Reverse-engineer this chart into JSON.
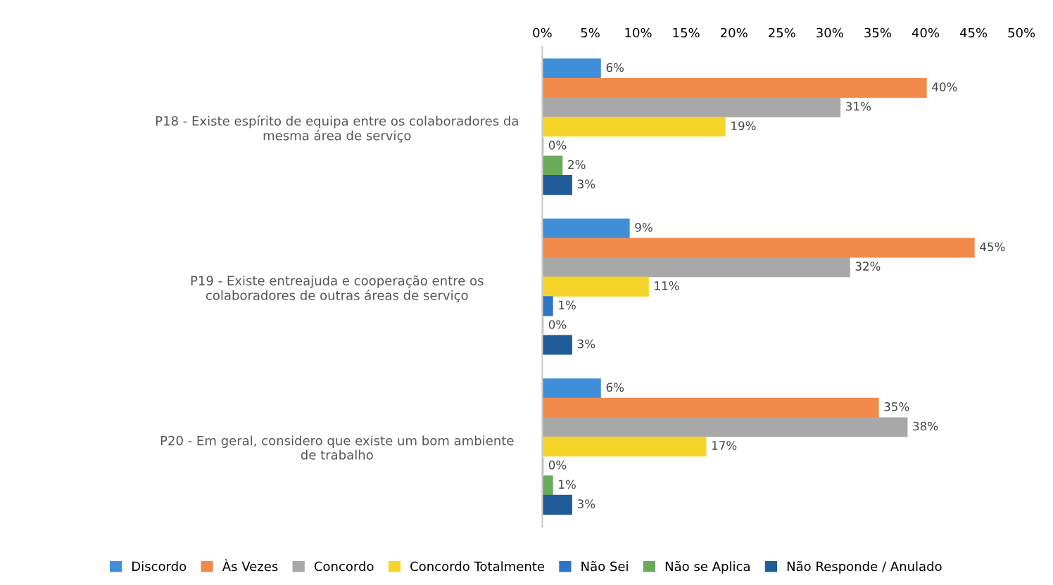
{
  "chart_data": {
    "type": "bar",
    "orientation": "horizontal",
    "categories": [
      "P18 - Existe espírito de equipa entre os colaboradores da\nmesma área de serviço",
      "P19 - Existe entreajuda e cooperação entre os\ncolaboradores de outras áreas de serviço",
      "P20 - Em geral, considero que existe um bom ambiente\nde trabalho"
    ],
    "series": [
      {
        "name": "Discordo",
        "color": "#3f8fd8",
        "values": [
          6,
          9,
          6
        ],
        "value_labels": [
          "6%",
          "9%",
          "6%"
        ]
      },
      {
        "name": "Às Vezes",
        "color": "#f28a4c",
        "values": [
          40,
          45,
          35
        ],
        "value_labels": [
          "40%",
          "45%",
          "35%"
        ]
      },
      {
        "name": "Concordo",
        "color": "#a8a8a8",
        "values": [
          31,
          32,
          38
        ],
        "value_labels": [
          "31%",
          "32%",
          "38%"
        ]
      },
      {
        "name": "Concordo Totalmente",
        "color": "#f5d52a",
        "values": [
          19,
          11,
          17
        ],
        "value_labels": [
          "19%",
          "11%",
          "17%"
        ]
      },
      {
        "name": "Não Sei",
        "color": "#2e75c6",
        "values": [
          0,
          1,
          0
        ],
        "value_labels": [
          "0%",
          "1%",
          "0%"
        ]
      },
      {
        "name": "Não se Aplica",
        "color": "#6aaa5a",
        "values": [
          2,
          0,
          1
        ],
        "value_labels": [
          "2%",
          "0%",
          "1%"
        ]
      },
      {
        "name": "Não Responde / Anulado",
        "color": "#1f5c99",
        "values": [
          3,
          3,
          3
        ],
        "value_labels": [
          "3%",
          "3%",
          "3%"
        ]
      }
    ],
    "xlim": [
      0,
      50
    ],
    "xticks": [
      {
        "value": 0,
        "label": "0%"
      },
      {
        "value": 5,
        "label": "5%"
      },
      {
        "value": 10,
        "label": "10%"
      },
      {
        "value": 15,
        "label": "15%"
      },
      {
        "value": 20,
        "label": "20%"
      },
      {
        "value": 25,
        "label": "25%"
      },
      {
        "value": 30,
        "label": "30%"
      },
      {
        "value": 35,
        "label": "35%"
      },
      {
        "value": 40,
        "label": "40%"
      },
      {
        "value": 45,
        "label": "45%"
      },
      {
        "value": 50,
        "label": "50%"
      }
    ],
    "legend": "bottom",
    "grid": false
  }
}
